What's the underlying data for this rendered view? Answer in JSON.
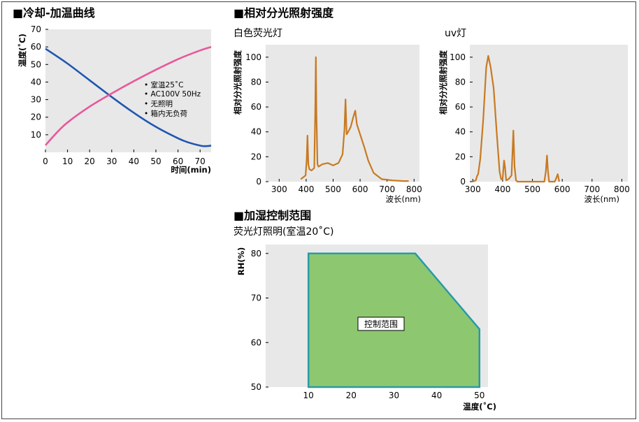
{
  "sections": {
    "cooling_heating": "■冷却-加温曲线",
    "spectral": "■相对分光照射强度",
    "humidity": "■加湿控制范围"
  },
  "notes": [
    "• 室温25˚C",
    "• AC100V 50Hz",
    "• 无照明",
    "• 箱内无负荷"
  ],
  "colors": {
    "cooling": "#1f56b0",
    "heating": "#e8589c",
    "spectrum": "#c87a22",
    "range_fill": "#8dc870",
    "range_border": "#2a9aa6"
  },
  "chart_data": [
    {
      "type": "line",
      "title": "",
      "xlabel": "时间(min)",
      "ylabel": "温度(˚C)",
      "xlim": [
        0,
        75
      ],
      "ylim": [
        0,
        70
      ],
      "xticks": [
        0,
        10,
        20,
        30,
        40,
        50,
        60,
        70
      ],
      "yticks": [
        10,
        20,
        30,
        40,
        50,
        60,
        70
      ],
      "series": [
        {
          "role": "cooling",
          "x": [
            0,
            10,
            20,
            30,
            40,
            50,
            60,
            65,
            70,
            72,
            75
          ],
          "y": [
            59,
            50.5,
            41,
            31.5,
            22.5,
            14.5,
            8,
            5.5,
            3.8,
            3.5,
            3.8
          ]
        },
        {
          "role": "heating",
          "x": [
            0,
            5,
            10,
            20,
            30,
            40,
            50,
            60,
            70,
            75
          ],
          "y": [
            4,
            11,
            17,
            26,
            33.5,
            40.5,
            47,
            53,
            58,
            60
          ]
        }
      ]
    },
    {
      "type": "line",
      "title": "白色荧光灯",
      "xlabel": "波长(nm)",
      "ylabel": "相对分光照射强度",
      "xlim": [
        250,
        820
      ],
      "ylim": [
        0,
        110
      ],
      "xticks": [
        300,
        400,
        500,
        600,
        700,
        800
      ],
      "yticks": [
        0,
        20,
        40,
        60,
        80,
        100
      ],
      "series": [
        {
          "x": [
            380,
            398,
            402,
            405,
            408,
            412,
            420,
            430,
            434,
            436,
            438,
            442,
            446,
            460,
            480,
            500,
            520,
            535,
            542,
            546,
            550,
            556,
            565,
            575,
            582,
            588,
            600,
            615,
            630,
            650,
            680,
            720,
            760,
            780
          ],
          "y": [
            2,
            5,
            18,
            37,
            14,
            10,
            9,
            11,
            60,
            100,
            55,
            14,
            12,
            14,
            15,
            13,
            15,
            22,
            42,
            66,
            38,
            40,
            44,
            52,
            57,
            46,
            38,
            28,
            17,
            7,
            2,
            1,
            0.5,
            0.5
          ]
        }
      ]
    },
    {
      "type": "line",
      "title": "uv灯",
      "xlabel": "波长(nm)",
      "ylabel": "相对分光照射强度",
      "xlim": [
        290,
        820
      ],
      "ylim": [
        0,
        110
      ],
      "xticks": [
        300,
        400,
        500,
        600,
        700,
        800
      ],
      "yticks": [
        0,
        20,
        40,
        60,
        80,
        100
      ],
      "series": [
        {
          "x": [
            300,
            310,
            315,
            318,
            325,
            335,
            345,
            352,
            360,
            370,
            380,
            390,
            395,
            400,
            405,
            408,
            412,
            420,
            430,
            436,
            440,
            445,
            450,
            540,
            545,
            549,
            552,
            556,
            560,
            575,
            580,
            585,
            590
          ],
          "y": [
            0,
            1,
            5,
            6,
            18,
            50,
            92,
            101,
            92,
            75,
            40,
            8,
            2,
            2,
            17,
            12,
            1,
            2,
            5,
            41,
            12,
            1,
            0,
            0,
            8,
            21,
            9,
            0,
            0,
            0,
            3,
            6,
            0
          ]
        }
      ]
    },
    {
      "type": "area",
      "title": "荧光灯照明(室温20˚C)",
      "xlabel": "温度(˚C)",
      "ylabel": "RH(%)",
      "region_label": "控制范围",
      "xlim": [
        0,
        52
      ],
      "ylim": [
        50,
        82
      ],
      "xticks": [
        10,
        20,
        30,
        40,
        50
      ],
      "yticks": [
        50,
        60,
        70,
        80
      ],
      "polygon": {
        "x": [
          10,
          10,
          35,
          50,
          50
        ],
        "y": [
          50,
          80,
          80,
          63,
          50
        ]
      }
    }
  ]
}
